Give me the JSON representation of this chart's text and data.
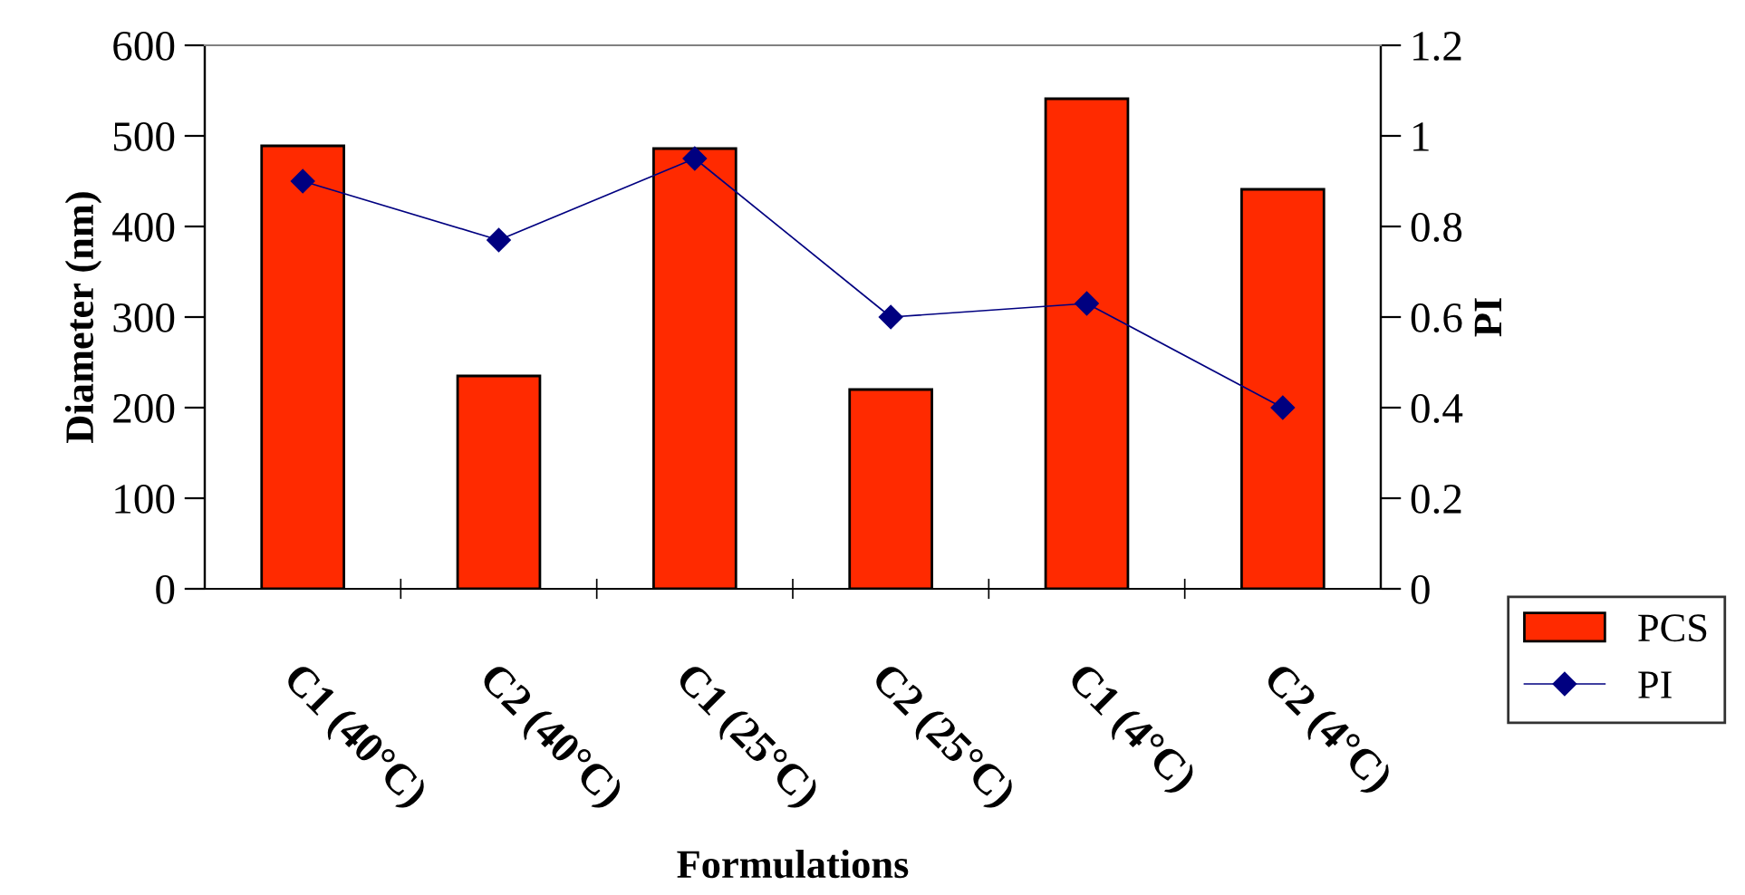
{
  "chart_data": {
    "type": "bar",
    "xlabel": "Formulations",
    "ylabel": "Diameter (nm)",
    "y2label": "PI",
    "categories": [
      "C1 (40°C)",
      "C2 (40°C)",
      "C1 (25°C)",
      "C2 (25°C)",
      "C1 (4°C)",
      "C2 (4°C)"
    ],
    "series": [
      {
        "name": "PCS",
        "color": "#ff2a00",
        "values": [
          489,
          235,
          486,
          220,
          541,
          441
        ]
      },
      {
        "name": "PI",
        "type": "line",
        "axis": "y2",
        "color": "#000080",
        "marker": "diamond",
        "values": [
          0.9,
          0.77,
          0.95,
          0.6,
          0.63,
          0.4
        ]
      }
    ],
    "ylim": [
      0,
      600
    ],
    "yticks": [
      0,
      100,
      200,
      300,
      400,
      500,
      600
    ],
    "y2lim": [
      0,
      1.2
    ],
    "y2ticks": [
      0,
      0.2,
      0.4,
      0.6,
      0.8,
      1,
      1.2
    ],
    "grid": false,
    "legend": "bottom right"
  }
}
